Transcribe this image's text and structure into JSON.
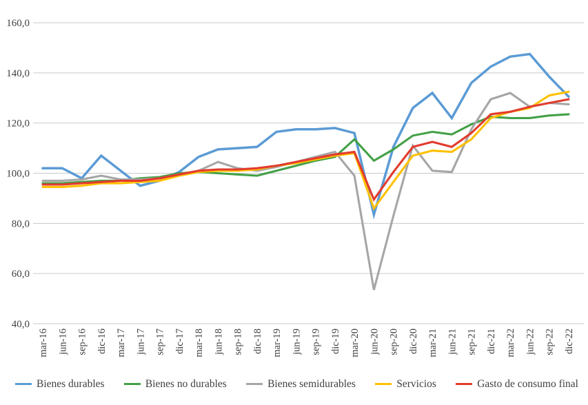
{
  "chart_data": {
    "type": "line",
    "title": "",
    "xlabel": "",
    "ylabel": "",
    "grid": true,
    "legend_position": "bottom",
    "ylim": [
      40,
      160
    ],
    "y_tick_step": 20,
    "y_tick_labels": [
      "160,0",
      "140,0",
      "120,0",
      "100,0",
      "80,0",
      "60,0",
      "40,0"
    ],
    "categories": [
      "mar-16",
      "jun-16",
      "sep-16",
      "dic-16",
      "mar-17",
      "jun-17",
      "sep-17",
      "dic-17",
      "mar-18",
      "jun-18",
      "sep-18",
      "dic-18",
      "mar-19",
      "jun-19",
      "sep-19",
      "dic-19",
      "mar-20",
      "jun-20",
      "sep-20",
      "dic-20",
      "mar-21",
      "jun-21",
      "sep-21",
      "dic-21",
      "mar-22",
      "jun-22",
      "sep-22",
      "dic-22"
    ],
    "series": [
      {
        "name": "Bienes durables",
        "color": "#5B9BD5",
        "values": [
          102,
          102,
          98,
          107,
          101,
          95,
          97,
          100.5,
          106.5,
          109.5,
          110,
          110.5,
          116.5,
          117.5,
          117.5,
          118,
          116,
          83.5,
          110.5,
          126,
          132,
          122,
          136,
          142.5,
          146.5,
          147.5,
          138.5,
          130.5
        ]
      },
      {
        "name": "Bienes no durables",
        "color": "#43A047",
        "values": [
          96,
          96,
          96.5,
          97,
          97,
          98,
          98.5,
          100,
          100.5,
          100,
          99.5,
          99,
          101,
          103,
          105,
          106.5,
          113.5,
          105,
          109.5,
          115,
          116.5,
          115.5,
          119.5,
          122.5,
          122,
          122,
          123,
          123.5
        ]
      },
      {
        "name": "Bienes semidurables",
        "color": "#A6A6A6",
        "values": [
          97,
          97,
          97.5,
          99,
          97.5,
          97.5,
          98,
          99.5,
          101,
          104.5,
          102,
          101,
          102.5,
          104.5,
          106.5,
          108.5,
          99,
          53.5,
          83,
          111,
          101,
          100.5,
          117.5,
          129.5,
          132,
          126.5,
          128,
          127.5
        ]
      },
      {
        "name": "Servicios",
        "color": "#FFC000",
        "values": [
          94.5,
          94.5,
          95,
          96,
          96,
          96.5,
          97,
          99,
          100.5,
          101,
          101,
          101.5,
          103,
          104,
          105.5,
          107,
          108,
          86,
          96.5,
          107,
          109,
          108.5,
          113.5,
          122,
          124.5,
          126,
          131,
          132.5
        ]
      },
      {
        "name": "Gasto de consumo final",
        "color": "#E23B2E",
        "values": [
          95.5,
          95.5,
          96,
          96.5,
          97,
          97,
          98,
          99.5,
          101,
          101.5,
          101.5,
          102,
          103,
          104.5,
          106,
          107.5,
          108.5,
          89.5,
          100.5,
          110.5,
          112.5,
          110.5,
          116,
          123.5,
          124.5,
          126.5,
          128,
          129.5
        ]
      }
    ]
  },
  "style": {
    "gridline_color": "#C9C9C9",
    "tick_label_color": "#404040",
    "background": "#ffffff"
  }
}
